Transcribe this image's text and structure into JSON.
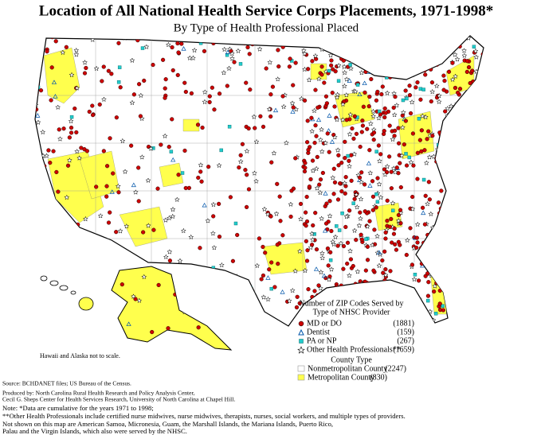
{
  "title": "Location of All National Health Service Corps Placements, 1971-1998*",
  "subtitle": "By Type of Health Professional Placed",
  "legend": {
    "title": [
      "Number of ZIP Codes Served by",
      "Type of NHSC Provider"
    ],
    "items": [
      {
        "label": "MD or DO",
        "count": "(1881)"
      },
      {
        "label": "Dentist",
        "count": "(159)"
      },
      {
        "label": "PA or NP",
        "count": "(267)"
      },
      {
        "label": "Other Health Professionals**",
        "count": "(1659)"
      }
    ],
    "county_title": "County Type",
    "county_items": [
      {
        "label": "Nonmetropolitan County",
        "count": "(2247)"
      },
      {
        "label": "Metropolitan County",
        "count": "(830)"
      }
    ]
  },
  "map_note": "Hawaii and Alaska not to scale.",
  "sources": [
    "Source: BCHDANET files; US Bureau of the Census.",
    "Produced by: North Carolina Rural Health Research and Policy Analysis Center,",
    "Cecil G. Sheps Center for Health Services Research, University of North Carolina at Chapel Hill."
  ],
  "notes": [
    "Note: *Data are cumulative for the years 1971 to 1998;",
    "**Other Health Professionals include certified nurse midwives, nurse midwives, therapists, nurses, social workers, and multiple types of providers.",
    "Not shown on this map are American Samoa, Micronesia, Guam, the Marshall Islands, the Mariana Islands, Puerto Rico,",
    "Palau and the Virgin Islands, which also were served by the NHSC."
  ]
}
